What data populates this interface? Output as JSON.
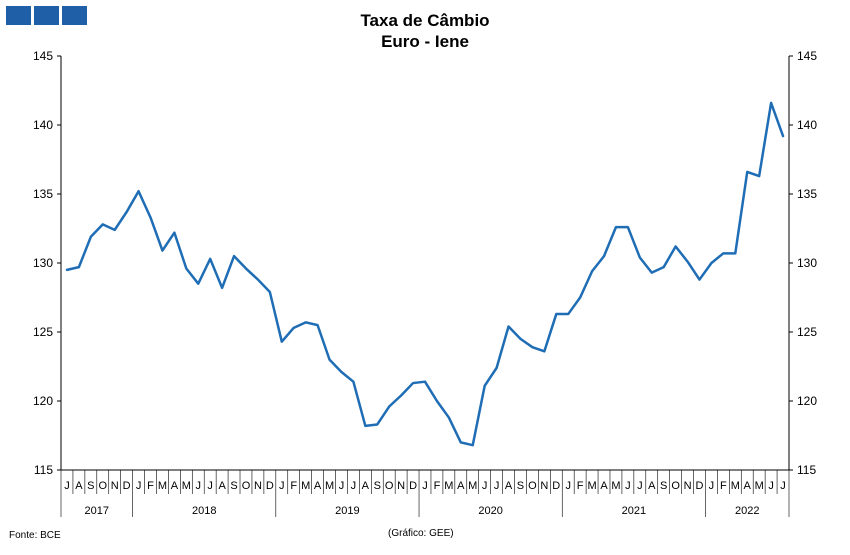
{
  "header": {
    "title_line1": "Taxa de Câmbio",
    "title_line2": "Euro - Iene"
  },
  "footer": {
    "source": "Fonte: BCE",
    "credit": "(Gráfico: GEE)"
  },
  "colors": {
    "line": "#1f6db5",
    "logo": "#1f5fa8"
  },
  "chart_data": {
    "type": "line",
    "title": "Taxa de Câmbio Euro - Iene",
    "ylim": [
      115,
      145
    ],
    "yticks": [
      115,
      120,
      125,
      130,
      135,
      140,
      145
    ],
    "grid": false,
    "legend": "none",
    "secondary_y_axis": true,
    "month_labels": [
      "J",
      "A",
      "S",
      "O",
      "N",
      "D",
      "J",
      "F",
      "M",
      "A",
      "M",
      "J",
      "J",
      "A",
      "S",
      "O",
      "N",
      "D",
      "J",
      "F",
      "M",
      "A",
      "M",
      "J",
      "J",
      "A",
      "S",
      "O",
      "N",
      "D",
      "J",
      "F",
      "M",
      "A",
      "M",
      "J",
      "J",
      "A",
      "S",
      "O",
      "N",
      "D",
      "J",
      "F",
      "M",
      "A",
      "M",
      "J",
      "J",
      "A",
      "S",
      "O",
      "N",
      "D",
      "J",
      "F",
      "M",
      "A",
      "M",
      "J",
      "J"
    ],
    "years": [
      {
        "label": "2017",
        "months": 6
      },
      {
        "label": "2018",
        "months": 12
      },
      {
        "label": "2019",
        "months": 12
      },
      {
        "label": "2020",
        "months": 12
      },
      {
        "label": "2021",
        "months": 12
      },
      {
        "label": "2022",
        "months": 7
      }
    ],
    "series": [
      {
        "values": [
          129.5,
          129.7,
          131.9,
          132.8,
          132.4,
          133.7,
          135.2,
          133.3,
          130.9,
          132.2,
          129.6,
          128.5,
          130.3,
          128.2,
          130.5,
          129.6,
          128.8,
          127.9,
          124.3,
          125.3,
          125.7,
          125.5,
          123.0,
          122.1,
          121.4,
          118.2,
          118.3,
          119.6,
          120.4,
          121.3,
          121.4,
          120.0,
          118.8,
          117.0,
          116.8,
          121.1,
          122.4,
          125.4,
          124.5,
          123.9,
          123.6,
          126.3,
          126.3,
          127.5,
          129.4,
          130.5,
          132.6,
          132.6,
          130.4,
          129.3,
          129.7,
          131.2,
          130.1,
          128.8,
          130.0,
          130.7,
          130.7,
          136.6,
          136.3,
          141.6,
          139.2
        ]
      }
    ]
  }
}
